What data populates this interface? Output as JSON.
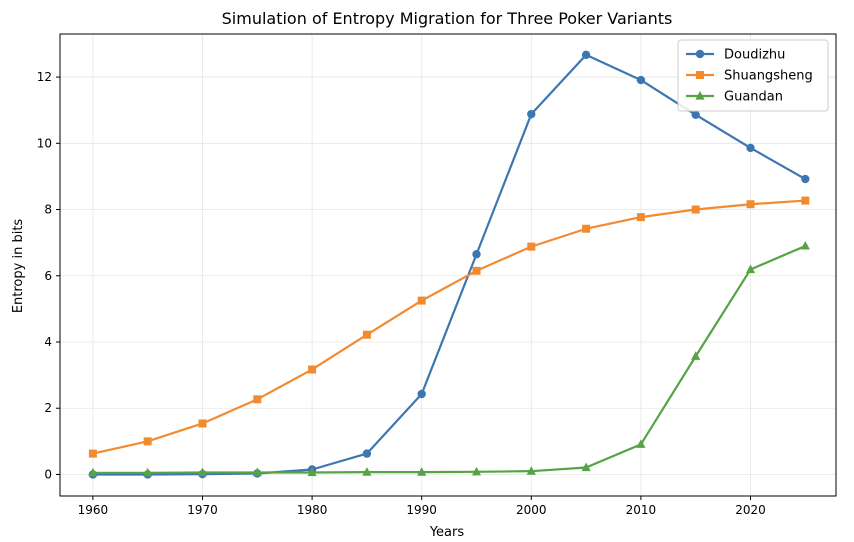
{
  "chart_data": {
    "type": "line",
    "title": "Simulation of Entropy Migration for Three Poker Variants",
    "xlabel": "Years",
    "ylabel": "Entropy in bits",
    "xlim": [
      1957,
      2027.8
    ],
    "ylim": [
      -0.65,
      13.3
    ],
    "xticks": [
      1960,
      1970,
      1980,
      1990,
      2000,
      2010,
      2020
    ],
    "yticks": [
      0,
      2,
      4,
      6,
      8,
      10,
      12
    ],
    "grid": true,
    "legend_position": "top-right",
    "x": [
      1960,
      1965,
      1970,
      1975,
      1980,
      1985,
      1990,
      1995,
      2000,
      2005,
      2010,
      2015,
      2020,
      2025
    ],
    "series": [
      {
        "name": "Doudizhu",
        "color": "#3d76b0",
        "marker": "circle",
        "values": [
          0.0,
          0.0,
          0.01,
          0.03,
          0.15,
          0.63,
          2.43,
          6.65,
          10.88,
          12.67,
          11.91,
          10.86,
          9.86,
          8.92
        ]
      },
      {
        "name": "Shuangsheng",
        "color": "#f28b30",
        "marker": "square",
        "values": [
          0.63,
          1.0,
          1.54,
          2.27,
          3.17,
          4.22,
          5.25,
          6.15,
          6.88,
          7.42,
          7.77,
          8.0,
          8.16,
          8.27
        ]
      },
      {
        "name": "Guandan",
        "color": "#55a345",
        "marker": "triangle",
        "values": [
          0.05,
          0.05,
          0.06,
          0.06,
          0.06,
          0.07,
          0.07,
          0.08,
          0.1,
          0.21,
          0.91,
          3.57,
          6.19,
          6.9
        ]
      }
    ]
  }
}
